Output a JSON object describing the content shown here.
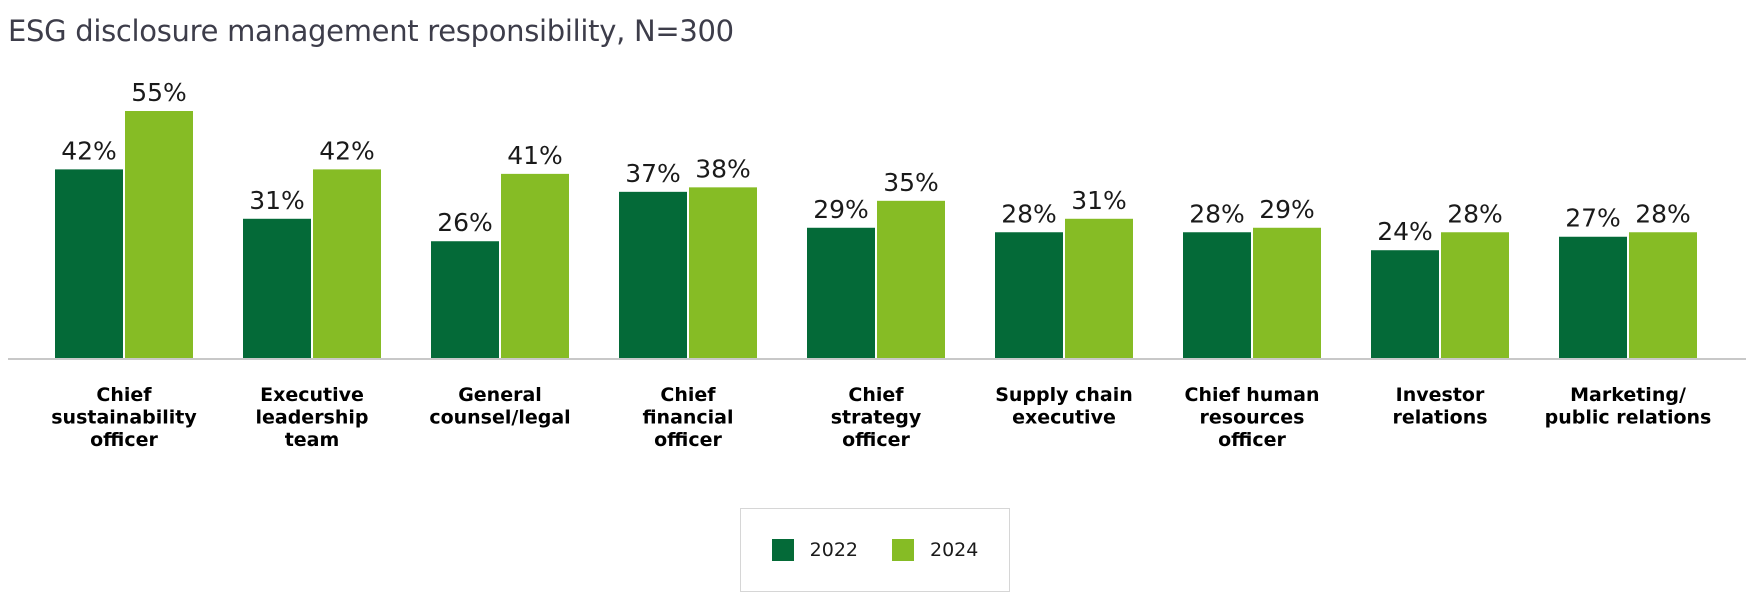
{
  "chart_data": {
    "type": "bar",
    "title": "ESG disclosure management responsibility, N=300",
    "categories": [
      "Chief sustainability officer",
      "Executive leadership team",
      "General counsel/legal",
      "Chief financial officer",
      "Chief strategy officer",
      "Supply chain executive",
      "Chief human resources officer",
      "Investor relations",
      "Marketing/ public relations"
    ],
    "category_lines": [
      [
        "Chief",
        "sustainability",
        "officer"
      ],
      [
        "Executive",
        "leadership",
        "team"
      ],
      [
        "General",
        "counsel/legal"
      ],
      [
        "Chief",
        "financial",
        "officer"
      ],
      [
        "Chief",
        "strategy",
        "officer"
      ],
      [
        "Supply chain",
        "executive"
      ],
      [
        "Chief human",
        "resources",
        "officer"
      ],
      [
        "Investor",
        "relations"
      ],
      [
        "Marketing/",
        "public relations"
      ]
    ],
    "series": [
      {
        "name": "2022",
        "color": "#046a38",
        "values": [
          42,
          31,
          26,
          37,
          29,
          28,
          28,
          24,
          27
        ]
      },
      {
        "name": "2024",
        "color": "#86bc25",
        "values": [
          55,
          42,
          41,
          38,
          35,
          31,
          29,
          28,
          28
        ]
      }
    ],
    "value_suffix": "%",
    "ylim": [
      0,
      55
    ],
    "grid": false,
    "legend_position": "bottom-center"
  }
}
